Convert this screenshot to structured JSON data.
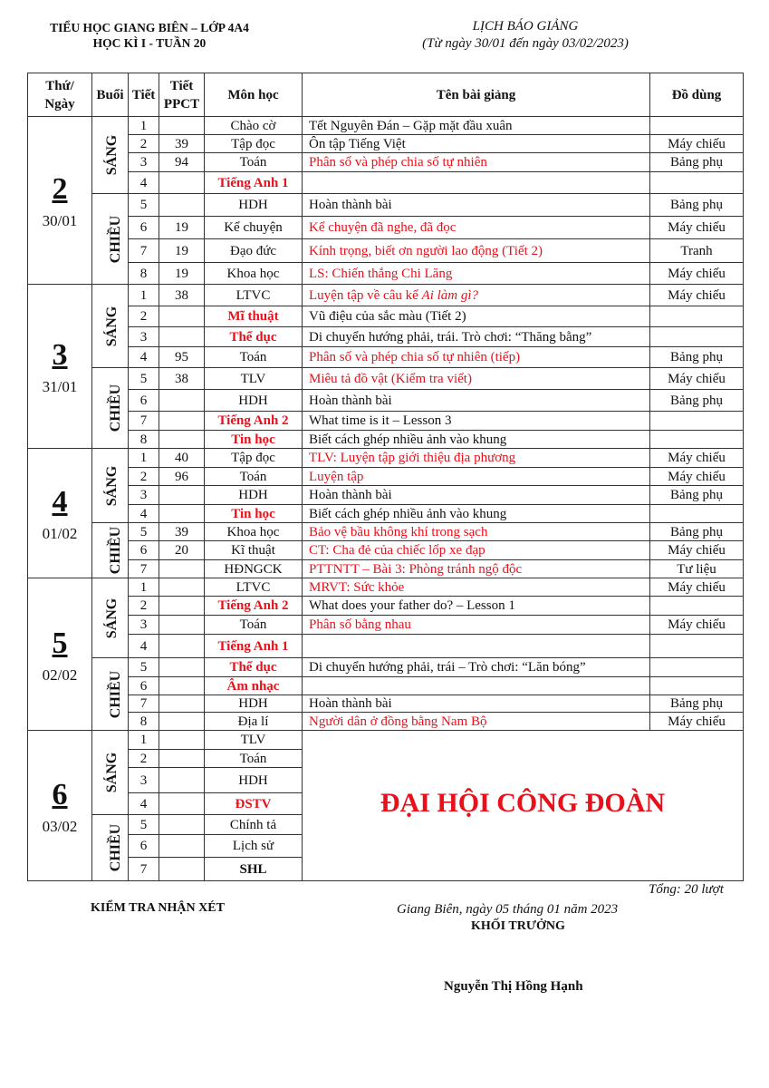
{
  "header": {
    "school": "TIỂU HỌC GIANG BIÊN – LỚP 4A4",
    "term": "HỌC KÌ I - TUẦN 20",
    "title": "LỊCH BÁO GIẢNG",
    "range": "(Từ ngày 30/01 đến ngày 03/02/2023)"
  },
  "columns": {
    "day": "Thứ/ Ngày",
    "session": "Buổi",
    "period": "Tiết",
    "ppct": "Tiết PPCT",
    "subject": "Môn học",
    "lesson": "Tên bài giảng",
    "equipment": "Đồ dùng"
  },
  "colors": {
    "accent_red": "#e8101a"
  },
  "days": [
    {
      "num": "2",
      "date": "30/01",
      "sessions": [
        {
          "name": "SÁNG",
          "rows": [
            {
              "tiet": "1",
              "ppct": "",
              "subject": "Chào cờ",
              "lesson": "Tết Nguyên Đán – Gặp mặt đầu xuân",
              "equip": ""
            },
            {
              "tiet": "2",
              "ppct": "39",
              "subject": "Tập đọc",
              "lesson": "Ôn tập Tiếng Việt",
              "equip": "Máy chiếu"
            },
            {
              "tiet": "3",
              "ppct": "94",
              "subject": "Toán",
              "lesson": "Phân số và phép chia số tự nhiên",
              "lesson_red": true,
              "equip": "Bảng phụ"
            },
            {
              "tiet": "4",
              "ppct": "",
              "subject": "Tiếng Anh 1",
              "subject_red": true,
              "lesson": "",
              "equip": ""
            }
          ]
        },
        {
          "name": "CHIỀU",
          "rows": [
            {
              "tiet": "5",
              "ppct": "",
              "subject": "HDH",
              "lesson": "Hoàn thành bài",
              "equip": "Bảng phụ"
            },
            {
              "tiet": "6",
              "ppct": "19",
              "subject": "Kể chuyện",
              "lesson": "Kể chuyện đã nghe, đã đọc",
              "lesson_red": true,
              "equip": "Máy chiếu"
            },
            {
              "tiet": "7",
              "ppct": "19",
              "subject": "Đạo đức",
              "lesson": "Kính trọng, biết ơn người lao động (Tiết 2)",
              "lesson_red": true,
              "equip": "Tranh"
            },
            {
              "tiet": "8",
              "ppct": "19",
              "subject": "Khoa học",
              "lesson": "LS: Chiến thắng Chi Lăng",
              "lesson_red": true,
              "equip": "Máy chiếu"
            }
          ]
        }
      ]
    },
    {
      "num": "3",
      "date": "31/01",
      "sessions": [
        {
          "name": "SÁNG",
          "rows": [
            {
              "tiet": "1",
              "ppct": "38",
              "subject": "LTVC",
              "lesson": "Luyện tập về câu kể ",
              "lesson_italic": "Ai làm gì?",
              "lesson_red": true,
              "equip": "Máy chiếu"
            },
            {
              "tiet": "2",
              "ppct": "",
              "subject": "Mĩ thuật",
              "subject_red": true,
              "lesson": "Vũ điệu của sắc màu (Tiết 2)",
              "equip": ""
            },
            {
              "tiet": "3",
              "ppct": "",
              "subject": "Thể dục",
              "subject_red": true,
              "lesson": "Di chuyển hướng phải, trái. Trò chơi: “Thăng bằng”",
              "equip": ""
            },
            {
              "tiet": "4",
              "ppct": "95",
              "subject": "Toán",
              "lesson": "Phân số và phép chia số tự nhiên (tiếp)",
              "lesson_red": true,
              "equip": "Bảng phụ"
            }
          ]
        },
        {
          "name": "CHIỀU",
          "rows": [
            {
              "tiet": "5",
              "ppct": "38",
              "subject": "TLV",
              "lesson": "Miêu tả đồ vật (Kiểm tra viết)",
              "lesson_red": true,
              "equip": "Máy chiếu"
            },
            {
              "tiet": "6",
              "ppct": "",
              "subject": "HDH",
              "lesson": "Hoàn thành bài",
              "equip": "Bảng phụ"
            },
            {
              "tiet": "7",
              "ppct": "",
              "subject": "Tiếng Anh 2",
              "subject_red": true,
              "lesson": "What time is it – Lesson 3",
              "equip": ""
            },
            {
              "tiet": "8",
              "ppct": "",
              "subject": "Tin học",
              "subject_red": true,
              "lesson": "Biết cách ghép nhiều ảnh vào khung",
              "equip": ""
            }
          ]
        }
      ]
    },
    {
      "num": "4",
      "date": "01/02",
      "sessions": [
        {
          "name": "SÁNG",
          "rows": [
            {
              "tiet": "1",
              "ppct": "40",
              "subject": "Tập đọc",
              "lesson": "TLV: Luyện tập giới thiệu địa phương",
              "lesson_red": true,
              "equip": "Máy chiếu"
            },
            {
              "tiet": "2",
              "ppct": "96",
              "subject": "Toán",
              "lesson": "Luyện tập",
              "lesson_red": true,
              "equip": "Máy chiếu"
            },
            {
              "tiet": "3",
              "ppct": "",
              "subject": "HDH",
              "lesson": "Hoàn thành bài",
              "equip": "Bảng phụ"
            },
            {
              "tiet": "4",
              "ppct": "",
              "subject": "Tin học",
              "subject_red": true,
              "lesson": "Biết cách ghép nhiều ảnh vào khung",
              "equip": ""
            }
          ]
        },
        {
          "name": "CHIỀU",
          "rows": [
            {
              "tiet": "5",
              "ppct": "39",
              "subject": "Khoa học",
              "lesson": "Bảo vệ bầu không khí trong sạch",
              "lesson_red": true,
              "equip": "Bảng phụ"
            },
            {
              "tiet": "6",
              "ppct": "20",
              "subject": "Kĩ thuật",
              "lesson": "CT: Cha đẻ của chiếc lốp xe đạp",
              "lesson_red": true,
              "equip": "Máy chiếu"
            },
            {
              "tiet": "7",
              "ppct": "",
              "subject": "HĐNGCK",
              "lesson": "PTTNTT – Bài 3: Phòng tránh ngộ độc",
              "lesson_red": true,
              "equip": "Tư liệu"
            }
          ]
        }
      ]
    },
    {
      "num": "5",
      "date": "02/02",
      "sessions": [
        {
          "name": "SÁNG",
          "rows": [
            {
              "tiet": "1",
              "ppct": "",
              "subject": "LTVC",
              "lesson": "MRVT: Sức khỏe",
              "lesson_red": true,
              "equip": "Máy chiếu"
            },
            {
              "tiet": "2",
              "ppct": "",
              "subject": "Tiếng Anh 2",
              "subject_red": true,
              "lesson": "What does your father do? – Lesson 1",
              "equip": ""
            },
            {
              "tiet": "3",
              "ppct": "",
              "subject": "Toán",
              "lesson": "Phân số bằng nhau",
              "lesson_red": true,
              "equip": "Máy chiếu"
            },
            {
              "tiet": "4",
              "ppct": "",
              "subject": "Tiếng Anh 1",
              "subject_red": true,
              "lesson": "",
              "equip": ""
            }
          ]
        },
        {
          "name": "CHIỀU",
          "rows": [
            {
              "tiet": "5",
              "ppct": "",
              "subject": "Thể dục",
              "subject_red": true,
              "lesson": "Di chuyển hướng phải, trái – Trò chơi: “Lăn bóng”",
              "equip": ""
            },
            {
              "tiet": "6",
              "ppct": "",
              "subject": "Âm nhạc",
              "subject_red": true,
              "lesson": "",
              "equip": ""
            },
            {
              "tiet": "7",
              "ppct": "",
              "subject": "HDH",
              "lesson": "Hoàn thành bài",
              "equip": "Bảng phụ"
            },
            {
              "tiet": "8",
              "ppct": "",
              "subject": "Địa lí",
              "lesson": "Người dân ở đồng bằng Nam Bộ",
              "lesson_red": true,
              "equip": "Máy chiếu"
            }
          ]
        }
      ]
    },
    {
      "num": "6",
      "date": "03/02",
      "merged_note": "ĐẠI HỘI CÔNG ĐOÀN",
      "sessions": [
        {
          "name": "SÁNG",
          "rows": [
            {
              "tiet": "1",
              "ppct": "",
              "subject": "TLV"
            },
            {
              "tiet": "2",
              "ppct": "",
              "subject": "Toán"
            },
            {
              "tiet": "3",
              "ppct": "",
              "subject": "HDH"
            },
            {
              "tiet": "4",
              "ppct": "",
              "subject": "ĐSTV",
              "subject_red": true
            }
          ]
        },
        {
          "name": "CHIỀU",
          "rows": [
            {
              "tiet": "5",
              "ppct": "",
              "subject": "Chính tả"
            },
            {
              "tiet": "6",
              "ppct": "",
              "subject": "Lịch sử"
            },
            {
              "tiet": "7",
              "ppct": "",
              "subject": "SHL",
              "subject_bold": true
            }
          ]
        }
      ]
    }
  ],
  "footer": {
    "total": "Tổng: 20 lượt",
    "review": "KIỂM TRA NHẬN XÉT",
    "place_date": "Giang Biên, ngày 05 tháng 01 năm 2023",
    "role": "KHỐI TRƯỞNG",
    "signer": "Nguyễn Thị Hồng Hạnh"
  }
}
